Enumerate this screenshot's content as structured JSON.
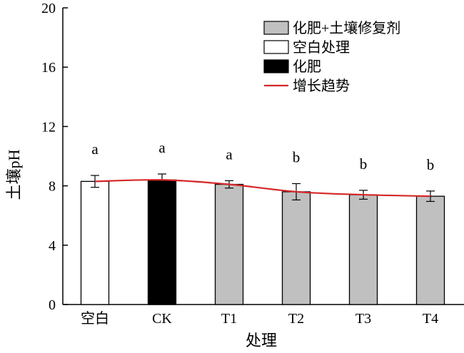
{
  "chart_data": {
    "type": "bar",
    "categories": [
      "空白",
      "CK",
      "T1",
      "T2",
      "T3",
      "T4"
    ],
    "values": [
      8.3,
      8.4,
      8.1,
      7.6,
      7.4,
      7.3
    ],
    "errors": [
      0.4,
      0.4,
      0.25,
      0.55,
      0.3,
      0.35
    ],
    "significance": [
      "a",
      "a",
      "a",
      "b",
      "b",
      "b"
    ],
    "bar_fill_keys": [
      "blank",
      "fertilizer",
      "amendment",
      "amendment",
      "amendment",
      "amendment"
    ],
    "trend": [
      8.3,
      8.4,
      8.1,
      7.6,
      7.4,
      7.3
    ],
    "xlabel": "处理",
    "ylabel": "土壤pH",
    "ylim": [
      0,
      20
    ],
    "yticks": [
      0,
      4,
      8,
      12,
      16,
      20
    ],
    "grid": false,
    "legend_position": "top-right",
    "legend": [
      {
        "key": "amendment",
        "label": "化肥+土壤修复剂",
        "kind": "box"
      },
      {
        "key": "blank",
        "label": "空白处理",
        "kind": "box"
      },
      {
        "key": "fertilizer",
        "label": "化肥",
        "kind": "box"
      },
      {
        "key": "trend",
        "label": "增长趋势",
        "kind": "line"
      }
    ],
    "colors": {
      "amendment": "#c0c0c0",
      "blank": "#ffffff",
      "fertilizer": "#000000",
      "trend": "#d62728",
      "axis": "#000000"
    }
  }
}
